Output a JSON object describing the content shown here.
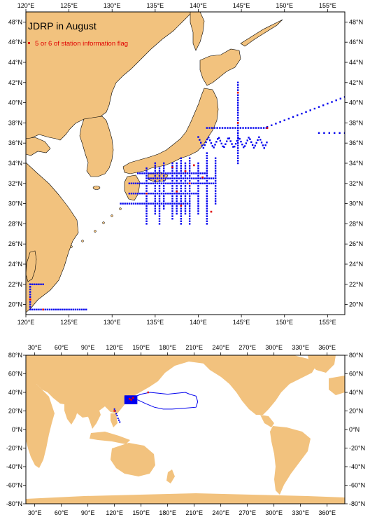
{
  "top_map": {
    "title": "JDRP in August",
    "legend_text": "5 or 6 of station information flag",
    "x_ticks": [
      "120°E",
      "125°E",
      "130°E",
      "135°E",
      "140°E",
      "145°E",
      "150°E",
      "155°E"
    ],
    "y_ticks": [
      "20°N",
      "22°N",
      "24°N",
      "26°N",
      "28°N",
      "30°N",
      "32°N",
      "34°N",
      "36°N",
      "38°N",
      "40°N",
      "42°N",
      "44°N",
      "46°N",
      "48°N"
    ],
    "lon_range": [
      120,
      157
    ],
    "lat_range": [
      19,
      49
    ]
  },
  "bottom_map": {
    "x_ticks": [
      "30°E",
      "60°E",
      "90°E",
      "120°E",
      "150°E",
      "180°E",
      "210°E",
      "240°E",
      "270°E",
      "300°E",
      "330°E",
      "360°E"
    ],
    "y_ticks": [
      "80°N",
      "60°N",
      "40°N",
      "20°N",
      "0°N",
      "-20°N",
      "-40°N",
      "-60°N",
      "-80°N"
    ],
    "lon_range": [
      20,
      380
    ],
    "lat_range": [
      -80,
      80
    ]
  },
  "colors": {
    "land": "#f2c27e",
    "ocean": "#ffffff",
    "station": "#0000ee",
    "flagged": "#e00000"
  }
}
